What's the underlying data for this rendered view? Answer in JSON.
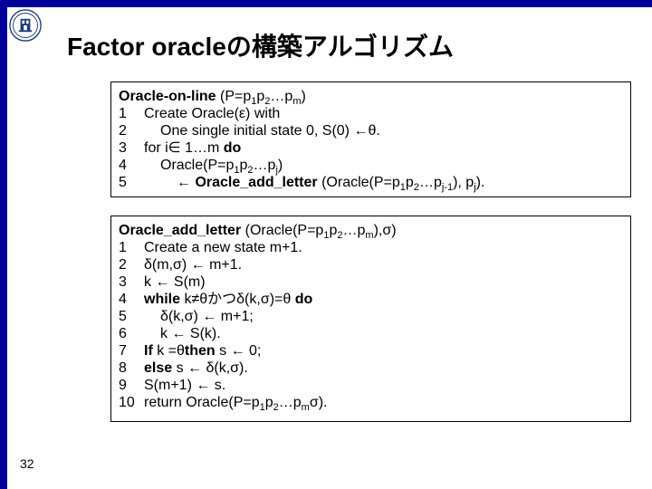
{
  "title": "Factor oracleの構築アルゴリズム",
  "slide_number": "32",
  "colors": {
    "border": "#000099",
    "background": "#ffffff",
    "text": "#000000",
    "logo_blue": "#1a3a7a",
    "logo_white": "#ffffff"
  },
  "block1": {
    "header_prefix_bold": "Oracle-on-line",
    "header_rest_a": " (P=p",
    "header_rest_b": "p",
    "header_rest_c": "…p",
    "header_rest_d": ")",
    "sub1": "1",
    "sub2": "2",
    "subm": "m",
    "lines": [
      {
        "n": "1",
        "indent": 0,
        "parts": [
          {
            "t": "Create Oracle(ε) with",
            "b": false
          }
        ]
      },
      {
        "n": "2",
        "indent": 1,
        "parts": [
          {
            "t": "One single initial state 0, S(0) ←θ.",
            "b": false
          }
        ]
      },
      {
        "n": "3",
        "indent": 0,
        "parts": [
          {
            "t": "for ",
            "b": false
          },
          {
            "t": "i∈ 1…m ",
            "b": false
          },
          {
            "t": "do",
            "b": true
          }
        ]
      },
      {
        "n": "4",
        "indent": 1,
        "parts": [
          {
            "t": "Oracle(P=p",
            "b": false
          },
          {
            "sub": "1"
          },
          {
            "t": "p",
            "b": false
          },
          {
            "sub": "2"
          },
          {
            "t": "…p",
            "b": false
          },
          {
            "sub": "j"
          },
          {
            "t": ")",
            "b": false
          }
        ]
      },
      {
        "n": "5",
        "indent": 2,
        "parts": [
          {
            "t": "← ",
            "b": false
          },
          {
            "t": "Oracle_add_letter",
            "b": true
          },
          {
            "t": " (Oracle(P=p",
            "b": false
          },
          {
            "sub": "1"
          },
          {
            "t": "p",
            "b": false
          },
          {
            "sub": "2"
          },
          {
            "t": "…p",
            "b": false
          },
          {
            "sub": "j-1"
          },
          {
            "t": "), p",
            "b": false
          },
          {
            "sub": "j"
          },
          {
            "t": ").",
            "b": false
          }
        ]
      }
    ]
  },
  "block2": {
    "header_prefix_bold": "Oracle_add_letter",
    "header_rest_a": " (Oracle(P=p",
    "header_rest_b": "p",
    "header_rest_c": "…p",
    "header_rest_d": "),σ)",
    "sub1": "1",
    "sub2": "2",
    "subm": "m",
    "lines": [
      {
        "n": "1",
        "indent": 0,
        "parts": [
          {
            "t": "Create a new state m+1.",
            "b": false
          }
        ]
      },
      {
        "n": "2",
        "indent": 0,
        "parts": [
          {
            "t": "δ(m,σ) ← m+1.",
            "b": false
          }
        ]
      },
      {
        "n": "3",
        "indent": 0,
        "parts": [
          {
            "t": "k ← S(m)",
            "b": false
          }
        ]
      },
      {
        "n": "4",
        "indent": 0,
        "parts": [
          {
            "t": "while ",
            "b": true
          },
          {
            "t": "k≠θかつδ(k,σ)=θ ",
            "b": false
          },
          {
            "t": "do",
            "b": true
          }
        ]
      },
      {
        "n": "5",
        "indent": 1,
        "parts": [
          {
            "t": "δ(k,σ) ← m+1;",
            "b": false
          }
        ]
      },
      {
        "n": "6",
        "indent": 1,
        "parts": [
          {
            "t": "k ← S(k).",
            "b": false
          }
        ]
      },
      {
        "n": "7",
        "indent": 0,
        "parts": [
          {
            "t": "If ",
            "b": true
          },
          {
            "t": "k =θ",
            "b": false
          },
          {
            "t": "then ",
            "b": true
          },
          {
            "t": "s ← 0;",
            "b": false
          }
        ]
      },
      {
        "n": "8",
        "indent": 0,
        "parts": [
          {
            "t": "else ",
            "b": true
          },
          {
            "t": "s ← δ(k,σ).",
            "b": false
          }
        ]
      },
      {
        "n": "9",
        "indent": 0,
        "parts": [
          {
            "t": "S(m+1) ← s.",
            "b": false
          }
        ]
      },
      {
        "n": "10",
        "indent": 0,
        "parts": [
          {
            "t": "return Oracle(P=p",
            "b": false
          },
          {
            "sub": "1"
          },
          {
            "t": "p",
            "b": false
          },
          {
            "sub": "2"
          },
          {
            "t": "…p",
            "b": false
          },
          {
            "sub": "m"
          },
          {
            "t": "σ).",
            "b": false
          }
        ]
      }
    ]
  }
}
